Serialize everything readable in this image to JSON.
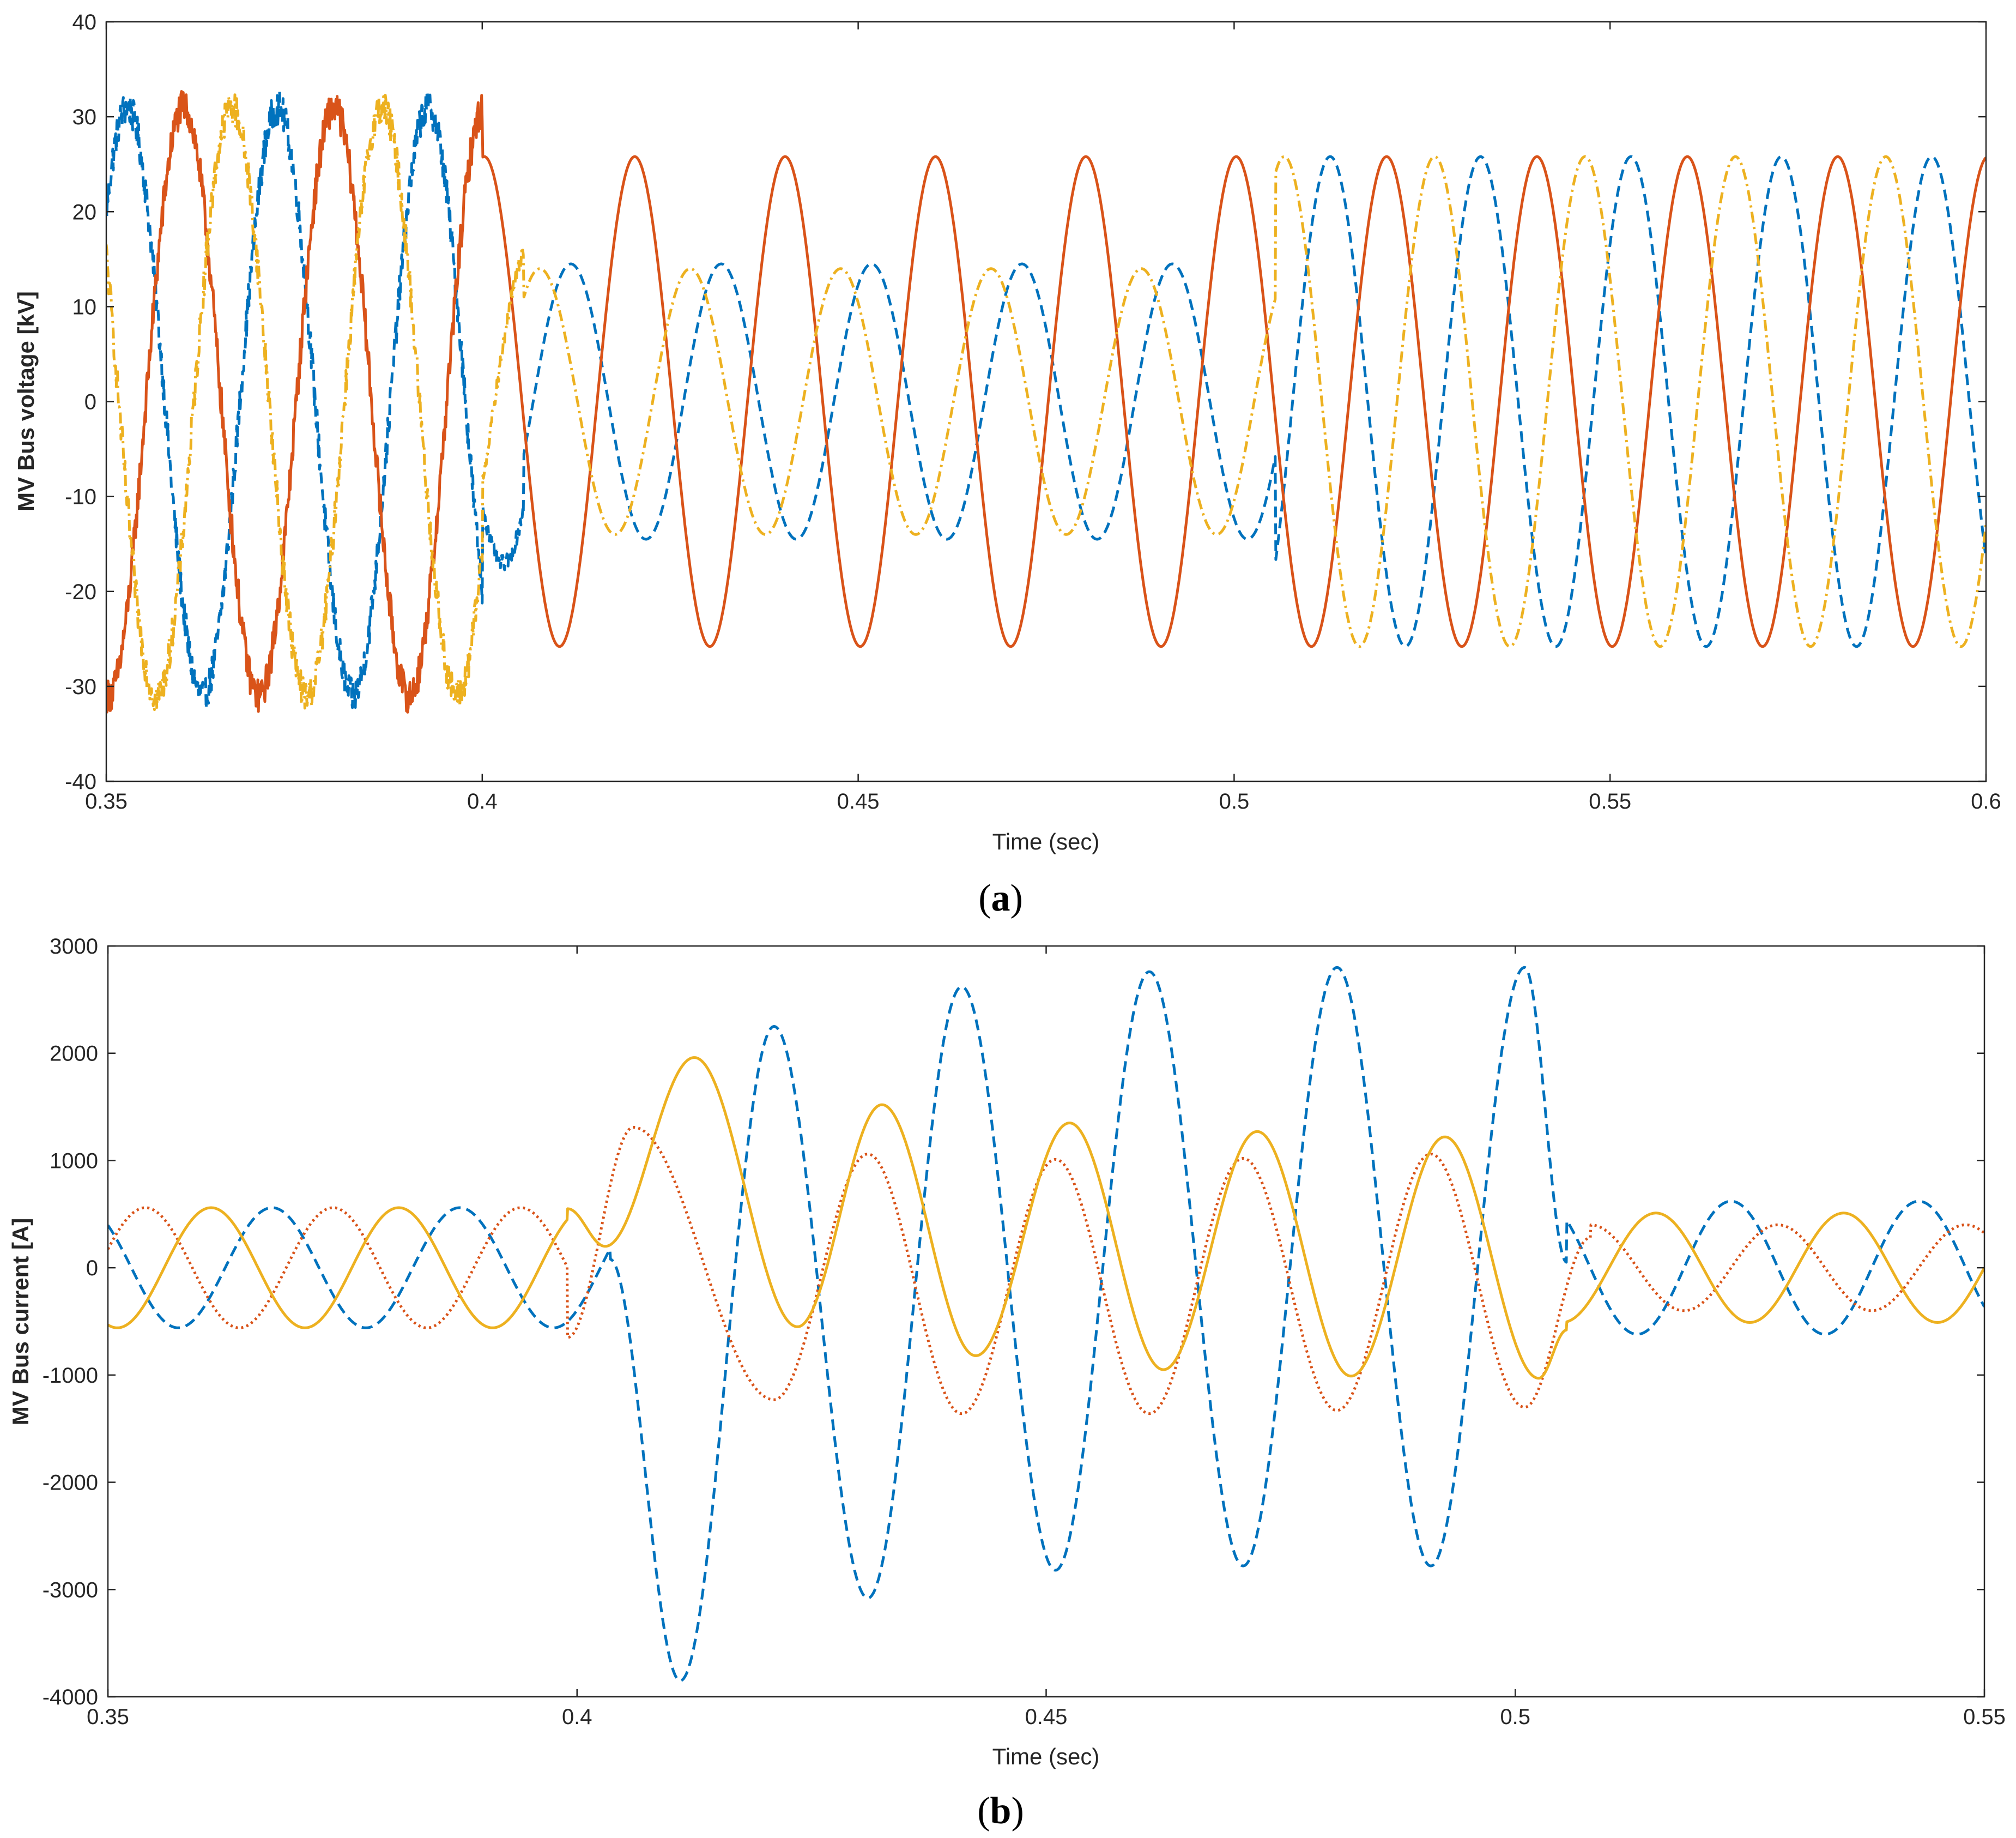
{
  "chart_data": [
    {
      "id": "a",
      "type": "line",
      "caption": "a",
      "xlabel": "Time (sec)",
      "ylabel": "MV Bus voltage [kV]",
      "xlim": [
        0.35,
        0.6
      ],
      "ylim": [
        -40,
        40
      ],
      "xticks": [
        0.35,
        0.4,
        0.45,
        0.5,
        0.55,
        0.6
      ],
      "xtick_labels": [
        "0.35",
        "0.4",
        "0.45",
        "0.5",
        "0.55",
        "0.6"
      ],
      "yticks": [
        -40,
        -30,
        -20,
        -10,
        0,
        10,
        20,
        30,
        40
      ],
      "ytick_labels": [
        "-40",
        "-30",
        "-20",
        "-10",
        "0",
        "10",
        "20",
        "30",
        "40"
      ],
      "grid": false,
      "frequency_hz": 50,
      "events": {
        "fault_start": 0.4,
        "fault_clear": 0.5055
      },
      "series": [
        {
          "color": "#0072BD",
          "style": "dashed",
          "phase_deg": 220,
          "segments": [
            {
              "t0": 0.35,
              "t1": 0.4,
              "amplitude": 31,
              "noise": 1.8
            },
            {
              "t0": 0.4,
              "t1": 0.4055,
              "amplitude": 17,
              "noise": 0.8
            },
            {
              "t0": 0.4055,
              "t1": 0.5055,
              "amplitude": 14.5,
              "phase_shift_deg": 18
            },
            {
              "t0": 0.5055,
              "t1": 0.6,
              "amplitude": 25.8
            }
          ]
        },
        {
          "color": "#D95319",
          "style": "solid",
          "phase_deg": 85,
          "segments": [
            {
              "t0": 0.35,
              "t1": 0.4,
              "amplitude": 31,
              "noise": 1.8
            },
            {
              "t0": 0.4,
              "t1": 0.6,
              "amplitude": 25.8,
              "phase_shift_deg": 0
            }
          ]
        },
        {
          "color": "#EDB120",
          "style": "dashdot",
          "phase_deg": -30,
          "segments": [
            {
              "t0": 0.35,
              "t1": 0.4,
              "amplitude": 31,
              "noise": 1.8
            },
            {
              "t0": 0.4,
              "t1": 0.4055,
              "amplitude": 17,
              "noise": 0.8
            },
            {
              "t0": 0.4055,
              "t1": 0.5055,
              "amplitude": 14,
              "phase_shift_deg": -18
            },
            {
              "t0": 0.5055,
              "t1": 0.6,
              "amplitude": 25.8
            }
          ]
        }
      ]
    },
    {
      "id": "b",
      "type": "line",
      "caption": "b",
      "xlabel": "Time (sec)",
      "ylabel": "MV Bus current [A]",
      "xlim": [
        0.35,
        0.55
      ],
      "ylim": [
        -4000,
        3000
      ],
      "xticks": [
        0.35,
        0.4,
        0.45,
        0.5,
        0.55
      ],
      "xtick_labels": [
        "0.35",
        "0.4",
        "0.45",
        "0.5",
        "0.55"
      ],
      "yticks": [
        -4000,
        -3000,
        -2000,
        -1000,
        0,
        1000,
        2000,
        3000
      ],
      "ytick_labels": [
        "-4000",
        "-3000",
        "-2000",
        "-1000",
        "0",
        "1000",
        "2000",
        "3000"
      ],
      "grid": false,
      "frequency_hz": 50,
      "events": {
        "fault_start": 0.4,
        "fault_clear": 0.5055
      },
      "series": [
        {
          "color": "#0072BD",
          "style": "dashed",
          "pre_fault": {
            "amplitude": 560,
            "peak_time": 0.3675
          },
          "fault": [
            {
              "time": 0.4035,
              "value": 80
            },
            {
              "time": 0.411,
              "value": -3850
            },
            {
              "time": 0.421,
              "value": 2250
            },
            {
              "time": 0.431,
              "value": -3080
            },
            {
              "time": 0.441,
              "value": 2620
            },
            {
              "time": 0.451,
              "value": -2820
            },
            {
              "time": 0.461,
              "value": 2760
            },
            {
              "time": 0.471,
              "value": -2780
            },
            {
              "time": 0.481,
              "value": 2800
            },
            {
              "time": 0.491,
              "value": -2780
            },
            {
              "time": 0.501,
              "value": 2800
            },
            {
              "time": 0.5055,
              "value": 50
            }
          ],
          "post_fault": {
            "amplitude": 620,
            "peak_time": 0.523
          }
        },
        {
          "color": "#D95319",
          "style": "dotted",
          "pre_fault": {
            "amplitude": 560,
            "peak_time": 0.354
          },
          "fault": [
            {
              "time": 0.399,
              "value": -650
            },
            {
              "time": 0.406,
              "value": 1310
            },
            {
              "time": 0.421,
              "value": -1230
            },
            {
              "time": 0.431,
              "value": 1060
            },
            {
              "time": 0.441,
              "value": -1360
            },
            {
              "time": 0.451,
              "value": 1010
            },
            {
              "time": 0.461,
              "value": -1360
            },
            {
              "time": 0.471,
              "value": 1020
            },
            {
              "time": 0.481,
              "value": -1330
            },
            {
              "time": 0.491,
              "value": 1060
            },
            {
              "time": 0.501,
              "value": -1300
            },
            {
              "time": 0.508,
              "value": 280
            }
          ],
          "post_fault": {
            "amplitude": 400,
            "peak_time": 0.508
          }
        },
        {
          "color": "#EDB120",
          "style": "solid",
          "pre_fault": {
            "amplitude": 560,
            "peak_time": 0.361
          },
          "fault": [
            {
              "time": 0.399,
              "value": 550
            },
            {
              "time": 0.403,
              "value": 200
            },
            {
              "time": 0.4125,
              "value": 1960
            },
            {
              "time": 0.4235,
              "value": -550
            },
            {
              "time": 0.4325,
              "value": 1520
            },
            {
              "time": 0.4425,
              "value": -820
            },
            {
              "time": 0.4525,
              "value": 1350
            },
            {
              "time": 0.4625,
              "value": -950
            },
            {
              "time": 0.4725,
              "value": 1270
            },
            {
              "time": 0.4825,
              "value": -1010
            },
            {
              "time": 0.4925,
              "value": 1220
            },
            {
              "time": 0.5025,
              "value": -1030
            },
            {
              "time": 0.5055,
              "value": -580
            }
          ],
          "post_fault": {
            "amplitude": 510,
            "peak_time": 0.515
          }
        }
      ]
    }
  ]
}
